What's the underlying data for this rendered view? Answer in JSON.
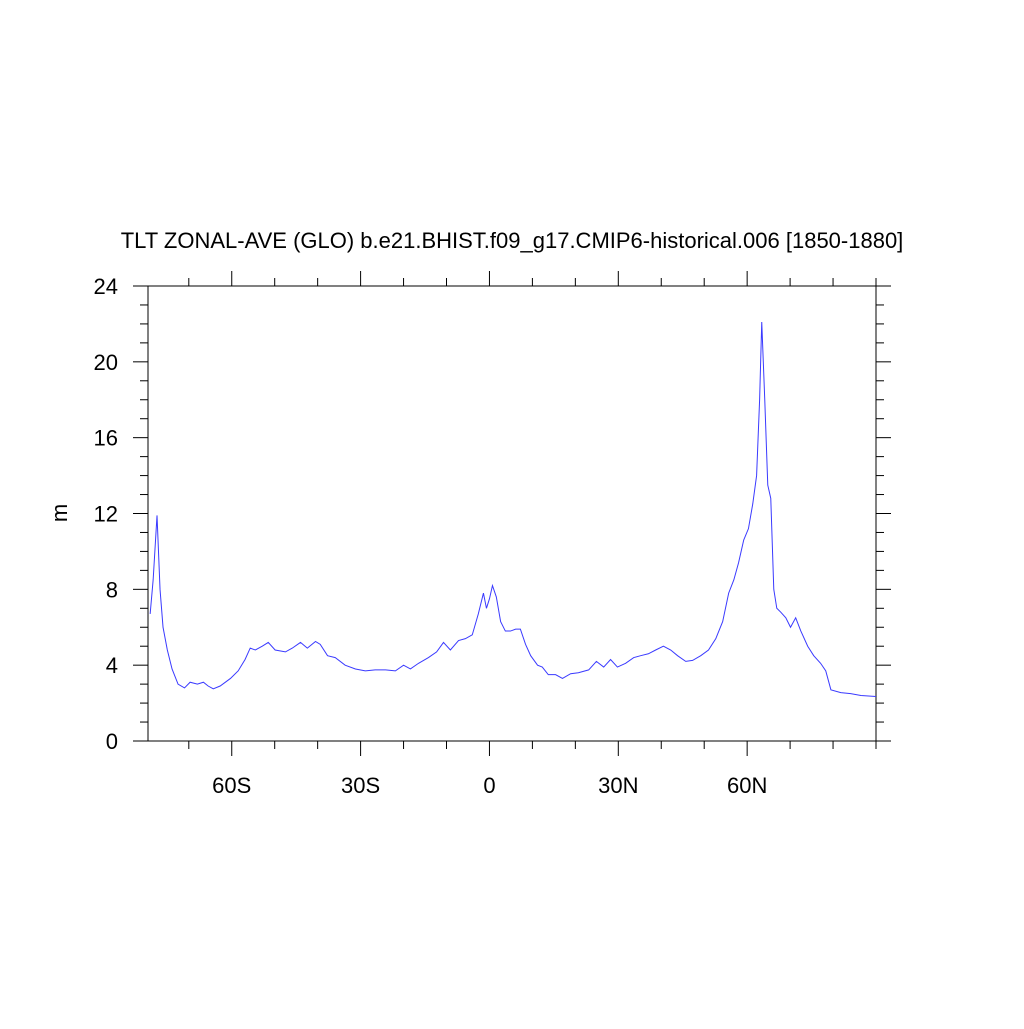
{
  "chart_data": {
    "type": "line",
    "title": "TLT ZONAL-AVE (GLO) b.e21.BHIST.f09_g17.CMIP6-historical.006 [1850-1880]",
    "y_label": "m",
    "xlim": [
      -79.5,
      90
    ],
    "ylim": [
      0,
      24
    ],
    "xticks": [
      {
        "value": -60,
        "label": "60S"
      },
      {
        "value": -30,
        "label": "30S"
      },
      0,
      {
        "value": 30,
        "label": "30N"
      },
      {
        "value": 60,
        "label": "60N"
      }
    ],
    "xminorticks": [
      -70,
      -50,
      -40,
      -20,
      -10,
      10,
      20,
      40,
      50,
      70,
      80,
      90
    ],
    "yticks": [
      0,
      4,
      8,
      12,
      16,
      20,
      24
    ],
    "yminorticks": [
      1,
      2,
      3,
      5,
      6,
      7,
      9,
      10,
      11,
      13,
      14,
      15,
      17,
      18,
      19,
      21,
      22,
      23
    ],
    "series": [
      {
        "color": "#3a3aff",
        "x": [
          -79,
          -78.3,
          -77.4,
          -76.7,
          -76,
          -75,
          -73.9,
          -72.5,
          -71,
          -69.7,
          -68,
          -66.6,
          -65.5,
          -64.3,
          -62.7,
          -60.3,
          -58.5,
          -56.9,
          -55.7,
          -54.5,
          -52.9,
          -51.5,
          -49.9,
          -47.5,
          -45.9,
          -44,
          -42.4,
          -40.5,
          -39.4,
          -37.7,
          -35.9,
          -33.6,
          -31.2,
          -28.9,
          -26.6,
          -24.2,
          -21.9,
          -20,
          -18.4,
          -16.5,
          -14.2,
          -12.3,
          -10.7,
          -9.1,
          -7.2,
          -5.6,
          -4,
          -2.6,
          -1.4,
          -0.7,
          0,
          0.7,
          1.6,
          2.6,
          3.7,
          4.9,
          6.1,
          7.2,
          8.4,
          9.6,
          11.2,
          12.3,
          13.7,
          15.4,
          17,
          18.9,
          20.7,
          23.1,
          24.9,
          26.6,
          28.2,
          29.8,
          31.7,
          33.6,
          35.2,
          37,
          38.7,
          40.5,
          42.2,
          43.8,
          45.7,
          47.3,
          49.2,
          51,
          52.7,
          54.3,
          55.7,
          56.9,
          58,
          59.2,
          60.3,
          61.3,
          62.2,
          62.9,
          63.4,
          64.1,
          64.8,
          65.5,
          66.2,
          66.9,
          67.8,
          69,
          70.1,
          71.3,
          72.5,
          74.1,
          75.5,
          77.1,
          78.3,
          79.5,
          81.8,
          84.1,
          86.5,
          90
        ],
        "values": [
          6.7,
          8.5,
          11.9,
          8,
          6,
          4.8,
          3.8,
          3.0,
          2.8,
          3.1,
          3.0,
          3.1,
          2.9,
          2.75,
          2.9,
          3.3,
          3.7,
          4.3,
          4.9,
          4.8,
          5.0,
          5.2,
          4.8,
          4.7,
          4.9,
          5.2,
          4.9,
          5.25,
          5.1,
          4.5,
          4.4,
          4.0,
          3.8,
          3.7,
          3.75,
          3.75,
          3.7,
          4.0,
          3.8,
          4.1,
          4.4,
          4.7,
          5.2,
          4.8,
          5.3,
          5.4,
          5.6,
          6.7,
          7.8,
          7.0,
          7.5,
          8.2,
          7.6,
          6.3,
          5.8,
          5.8,
          5.9,
          5.9,
          5.1,
          4.5,
          4.0,
          3.9,
          3.5,
          3.5,
          3.3,
          3.55,
          3.6,
          3.75,
          4.2,
          3.9,
          4.3,
          3.9,
          4.1,
          4.4,
          4.5,
          4.6,
          4.8,
          5.0,
          4.8,
          4.5,
          4.2,
          4.25,
          4.5,
          4.8,
          5.4,
          6.3,
          7.8,
          8.5,
          9.4,
          10.6,
          11.2,
          12.5,
          14,
          18,
          22.1,
          18,
          13.5,
          12.8,
          8,
          7,
          6.8,
          6.5,
          6.0,
          6.5,
          5.8,
          5.0,
          4.5,
          4.1,
          3.7,
          2.7,
          2.55,
          2.5,
          2.4,
          2.35
        ]
      }
    ]
  }
}
